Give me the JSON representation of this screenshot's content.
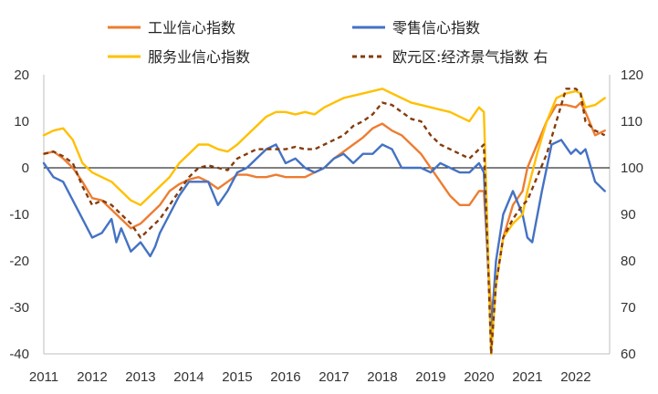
{
  "chart_data": {
    "type": "line",
    "title": "",
    "xlabel": "",
    "ylabel": "",
    "y2label": "",
    "x_ticks": [
      "2011",
      "2012",
      "2013",
      "2014",
      "2015",
      "2016",
      "2017",
      "2018",
      "2019",
      "2020",
      "2021",
      "2022"
    ],
    "ylim": [
      -40,
      20
    ],
    "y_ticks": [
      -40,
      -30,
      -20,
      -10,
      0,
      10,
      20
    ],
    "y2lim": [
      60,
      120
    ],
    "y2_ticks": [
      60,
      70,
      80,
      90,
      100,
      110,
      120
    ],
    "x_range": [
      2011.0,
      2022.7
    ],
    "grid": false,
    "zero_line": true,
    "legend_position": "top",
    "series": [
      {
        "name": "工业信心指数",
        "axis": "left",
        "color": "#ED7D31",
        "style": "solid",
        "x": [
          2011.0,
          2011.2,
          2011.4,
          2011.6,
          2011.8,
          2012.0,
          2012.2,
          2012.4,
          2012.6,
          2012.8,
          2013.0,
          2013.2,
          2013.4,
          2013.6,
          2013.8,
          2014.0,
          2014.2,
          2014.4,
          2014.6,
          2014.8,
          2015.0,
          2015.2,
          2015.4,
          2015.6,
          2015.8,
          2016.0,
          2016.2,
          2016.4,
          2016.6,
          2016.8,
          2017.0,
          2017.2,
          2017.4,
          2017.6,
          2017.8,
          2018.0,
          2018.2,
          2018.4,
          2018.6,
          2018.8,
          2019.0,
          2019.2,
          2019.4,
          2019.6,
          2019.8,
          2020.0,
          2020.1,
          2020.25,
          2020.35,
          2020.5,
          2020.7,
          2020.9,
          2021.0,
          2021.2,
          2021.4,
          2021.6,
          2021.8,
          2022.0,
          2022.1,
          2022.2,
          2022.4,
          2022.6
        ],
        "y": [
          3,
          3.5,
          2,
          0,
          -3,
          -6.5,
          -7,
          -9,
          -11,
          -13,
          -12,
          -10,
          -8,
          -5,
          -3.5,
          -2.5,
          -2,
          -3,
          -4.5,
          -3,
          -1.5,
          -1.5,
          -2,
          -2,
          -1.5,
          -2,
          -2,
          -2,
          -1,
          0,
          2,
          3.5,
          5,
          6.5,
          8.5,
          9.5,
          8,
          7,
          5,
          3,
          0,
          -3,
          -6,
          -8,
          -8,
          -5,
          -5,
          -31,
          -25,
          -15,
          -8,
          -5,
          0,
          5,
          10,
          13.5,
          13.5,
          13,
          14,
          12,
          7,
          8
        ]
      },
      {
        "name": "零售信心指数",
        "axis": "left",
        "color": "#4472C4",
        "style": "solid",
        "x": [
          2011.0,
          2011.2,
          2011.4,
          2011.6,
          2011.8,
          2012.0,
          2012.2,
          2012.4,
          2012.5,
          2012.6,
          2012.8,
          2013.0,
          2013.2,
          2013.3,
          2013.4,
          2013.6,
          2013.8,
          2014.0,
          2014.2,
          2014.4,
          2014.6,
          2014.8,
          2015.0,
          2015.2,
          2015.4,
          2015.6,
          2015.8,
          2016.0,
          2016.2,
          2016.4,
          2016.6,
          2016.8,
          2017.0,
          2017.2,
          2017.4,
          2017.6,
          2017.8,
          2018.0,
          2018.2,
          2018.4,
          2018.6,
          2018.8,
          2019.0,
          2019.2,
          2019.4,
          2019.6,
          2019.8,
          2020.0,
          2020.1,
          2020.25,
          2020.35,
          2020.5,
          2020.7,
          2020.9,
          2021.0,
          2021.1,
          2021.3,
          2021.5,
          2021.7,
          2021.9,
          2022.0,
          2022.1,
          2022.2,
          2022.4,
          2022.6
        ],
        "y": [
          1,
          -2,
          -3,
          -7,
          -11,
          -15,
          -14,
          -11,
          -16,
          -13,
          -18,
          -16,
          -19,
          -17,
          -14,
          -10,
          -6,
          -3,
          -3,
          -3,
          -8,
          -5,
          -1,
          0,
          2,
          4,
          5,
          1,
          2,
          0,
          -1,
          0,
          2,
          3,
          1,
          3,
          3,
          5,
          4,
          0,
          0,
          0,
          -1,
          1,
          0,
          -1,
          -1,
          1,
          -1,
          -35,
          -20,
          -10,
          -5,
          -10,
          -15,
          -16,
          -5,
          5,
          6,
          3,
          4,
          3,
          4,
          -3,
          -5
        ]
      },
      {
        "name": "服务业信心指数",
        "axis": "left",
        "color": "#FFC000",
        "style": "solid",
        "x": [
          2011.0,
          2011.2,
          2011.4,
          2011.6,
          2011.8,
          2012.0,
          2012.2,
          2012.4,
          2012.6,
          2012.8,
          2013.0,
          2013.2,
          2013.4,
          2013.6,
          2013.8,
          2014.0,
          2014.2,
          2014.4,
          2014.6,
          2014.8,
          2015.0,
          2015.2,
          2015.4,
          2015.6,
          2015.8,
          2016.0,
          2016.2,
          2016.4,
          2016.6,
          2016.8,
          2017.0,
          2017.2,
          2017.4,
          2017.6,
          2017.8,
          2018.0,
          2018.2,
          2018.4,
          2018.6,
          2018.8,
          2019.0,
          2019.2,
          2019.4,
          2019.6,
          2019.8,
          2020.0,
          2020.1,
          2020.25,
          2020.35,
          2020.5,
          2020.7,
          2020.9,
          2021.0,
          2021.2,
          2021.4,
          2021.6,
          2021.8,
          2022.0,
          2022.1,
          2022.2,
          2022.4,
          2022.6
        ],
        "y": [
          7,
          8,
          8.5,
          6,
          1,
          -1,
          -2,
          -3,
          -5,
          -7,
          -8,
          -6,
          -4,
          -2,
          1,
          3,
          5,
          5,
          4,
          3.5,
          5,
          7,
          9,
          11,
          12,
          12,
          11.5,
          12,
          11.5,
          13,
          14,
          15,
          15.5,
          16,
          16.5,
          17,
          16,
          15,
          14,
          13.5,
          13,
          12.5,
          12,
          11,
          10,
          13,
          12,
          -40,
          -25,
          -15,
          -12,
          -10,
          -5,
          3,
          10,
          15,
          16,
          16.5,
          16,
          13,
          13.5,
          15
        ]
      },
      {
        "name": "欧元区:经济景气指数 右",
        "axis": "right",
        "color": "#843C0C",
        "style": "dashed",
        "x": [
          2011.0,
          2011.2,
          2011.4,
          2011.6,
          2011.8,
          2012.0,
          2012.2,
          2012.4,
          2012.6,
          2012.8,
          2013.0,
          2013.2,
          2013.4,
          2013.6,
          2013.8,
          2014.0,
          2014.2,
          2014.4,
          2014.6,
          2014.8,
          2015.0,
          2015.2,
          2015.4,
          2015.6,
          2015.8,
          2016.0,
          2016.2,
          2016.4,
          2016.6,
          2016.8,
          2017.0,
          2017.2,
          2017.4,
          2017.6,
          2017.8,
          2018.0,
          2018.2,
          2018.4,
          2018.6,
          2018.8,
          2019.0,
          2019.2,
          2019.4,
          2019.6,
          2019.8,
          2020.0,
          2020.1,
          2020.25,
          2020.35,
          2020.5,
          2020.7,
          2020.9,
          2021.0,
          2021.2,
          2021.4,
          2021.6,
          2021.8,
          2022.0,
          2022.1,
          2022.2,
          2022.4,
          2022.6
        ],
        "y": [
          103,
          103.5,
          102.5,
          101,
          96,
          92,
          93,
          92,
          90,
          88,
          85,
          87,
          89,
          92,
          95,
          98,
          100,
          100.5,
          100,
          99.5,
          102,
          103,
          104,
          104,
          104,
          104,
          104.5,
          104,
          104,
          105,
          106,
          107,
          109,
          110,
          111.5,
          114,
          113.5,
          112,
          110.5,
          110,
          107,
          105,
          104,
          103,
          102,
          104,
          105,
          60,
          75,
          85,
          89,
          92,
          93,
          98,
          103,
          110,
          117,
          117,
          116,
          110,
          108,
          107
        ]
      }
    ]
  }
}
